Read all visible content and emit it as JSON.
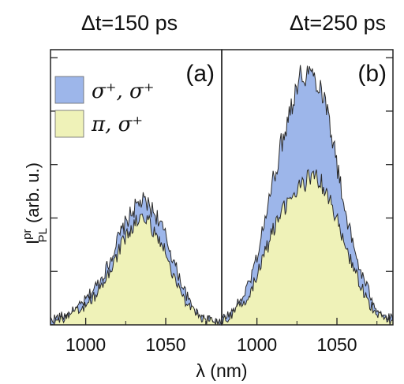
{
  "chart_data": {
    "type": "area",
    "ylabel": "I",
    "ylabel_sup": "pr",
    "ylabel_sub": "PL",
    "ylabel_suffix": " (arb. u.)",
    "xlabel": "λ (nm)",
    "xlim": [
      978,
      1085
    ],
    "ylim": [
      0,
      1.0
    ],
    "xticks": [
      1000,
      1050
    ],
    "xtick_labels": [
      "1000",
      "1050"
    ],
    "ytick_count": 5,
    "grid": false,
    "legend": {
      "placement": "top-left",
      "entries": [
        {
          "key": "sigma_plus_sigma_plus",
          "label": "σ⁺, σ⁺",
          "color": "#9db6ea"
        },
        {
          "key": "pi_sigma_plus",
          "label": "π, σ⁺",
          "color": "#eff2b8"
        }
      ]
    },
    "panels": [
      {
        "label": "(a)",
        "title": "Δt=150 ps",
        "x": [
          978,
          985,
          990,
          995,
          1000,
          1005,
          1010,
          1015,
          1020,
          1025,
          1030,
          1035,
          1040,
          1045,
          1050,
          1055,
          1060,
          1065,
          1070,
          1075,
          1080,
          1085
        ],
        "series": [
          {
            "name": "σ⁺, σ⁺",
            "values": [
              0.02,
              0.03,
              0.04,
              0.06,
              0.09,
              0.13,
              0.17,
              0.23,
              0.31,
              0.37,
              0.42,
              0.45,
              0.43,
              0.39,
              0.32,
              0.23,
              0.15,
              0.08,
              0.04,
              0.02,
              0.01,
              0.01
            ]
          },
          {
            "name": "π, σ⁺",
            "values": [
              0.01,
              0.02,
              0.03,
              0.05,
              0.07,
              0.1,
              0.14,
              0.19,
              0.26,
              0.32,
              0.36,
              0.39,
              0.37,
              0.32,
              0.26,
              0.18,
              0.11,
              0.06,
              0.03,
              0.02,
              0.01,
              0.0
            ]
          }
        ]
      },
      {
        "label": "(b)",
        "title": "Δt=250 ps",
        "x": [
          978,
          985,
          990,
          995,
          1000,
          1005,
          1010,
          1015,
          1020,
          1025,
          1030,
          1035,
          1040,
          1045,
          1050,
          1055,
          1060,
          1065,
          1070,
          1075,
          1080,
          1085
        ],
        "series": [
          {
            "name": "σ⁺, σ⁺",
            "values": [
              0.02,
              0.05,
              0.09,
              0.15,
              0.25,
              0.38,
              0.52,
              0.65,
              0.77,
              0.88,
              0.92,
              0.91,
              0.87,
              0.76,
              0.58,
              0.42,
              0.29,
              0.19,
              0.12,
              0.06,
              0.03,
              0.02
            ]
          },
          {
            "name": "π, σ⁺",
            "values": [
              0.01,
              0.04,
              0.07,
              0.11,
              0.18,
              0.26,
              0.34,
              0.4,
              0.45,
              0.49,
              0.52,
              0.54,
              0.52,
              0.46,
              0.38,
              0.29,
              0.21,
              0.14,
              0.08,
              0.04,
              0.02,
              0.01
            ]
          }
        ]
      }
    ]
  }
}
